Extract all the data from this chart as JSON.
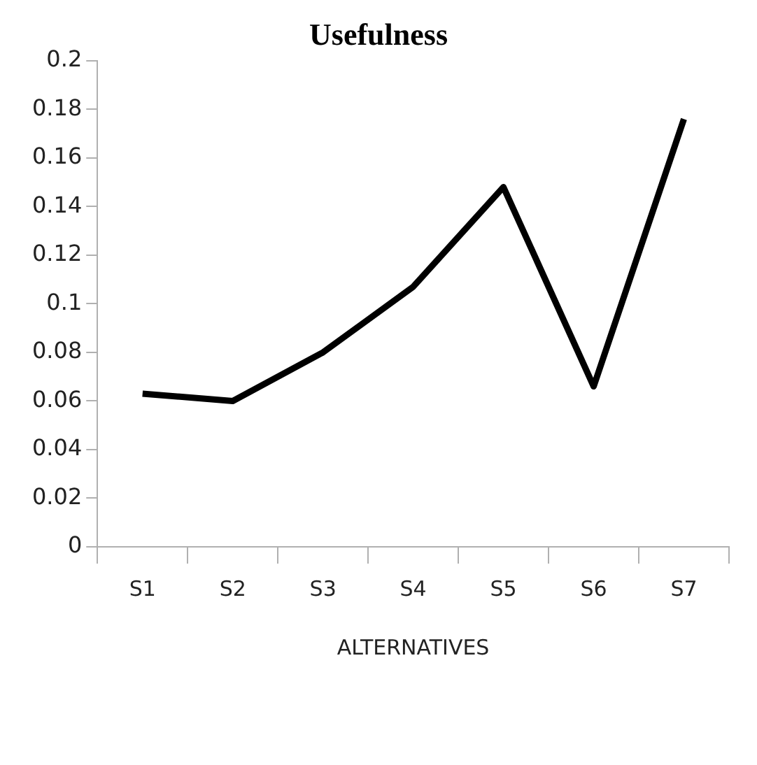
{
  "chart_data": {
    "type": "line",
    "title": "Usefulness",
    "xlabel": "ALTERNATIVES",
    "categories": [
      "S1",
      "S2",
      "S3",
      "S4",
      "S5",
      "S6",
      "S7"
    ],
    "series": [
      {
        "color": "#000000",
        "values": [
          0.063,
          0.06,
          0.08,
          0.107,
          0.148,
          0.066,
          0.176
        ]
      }
    ],
    "ylim": [
      0,
      0.2
    ],
    "yticks": [
      0,
      0.02,
      0.04,
      0.06,
      0.08,
      0.1,
      0.12,
      0.14,
      0.16,
      0.18,
      0.2
    ],
    "grid": false,
    "legend": false,
    "marker": "none",
    "line_style": "solid"
  }
}
